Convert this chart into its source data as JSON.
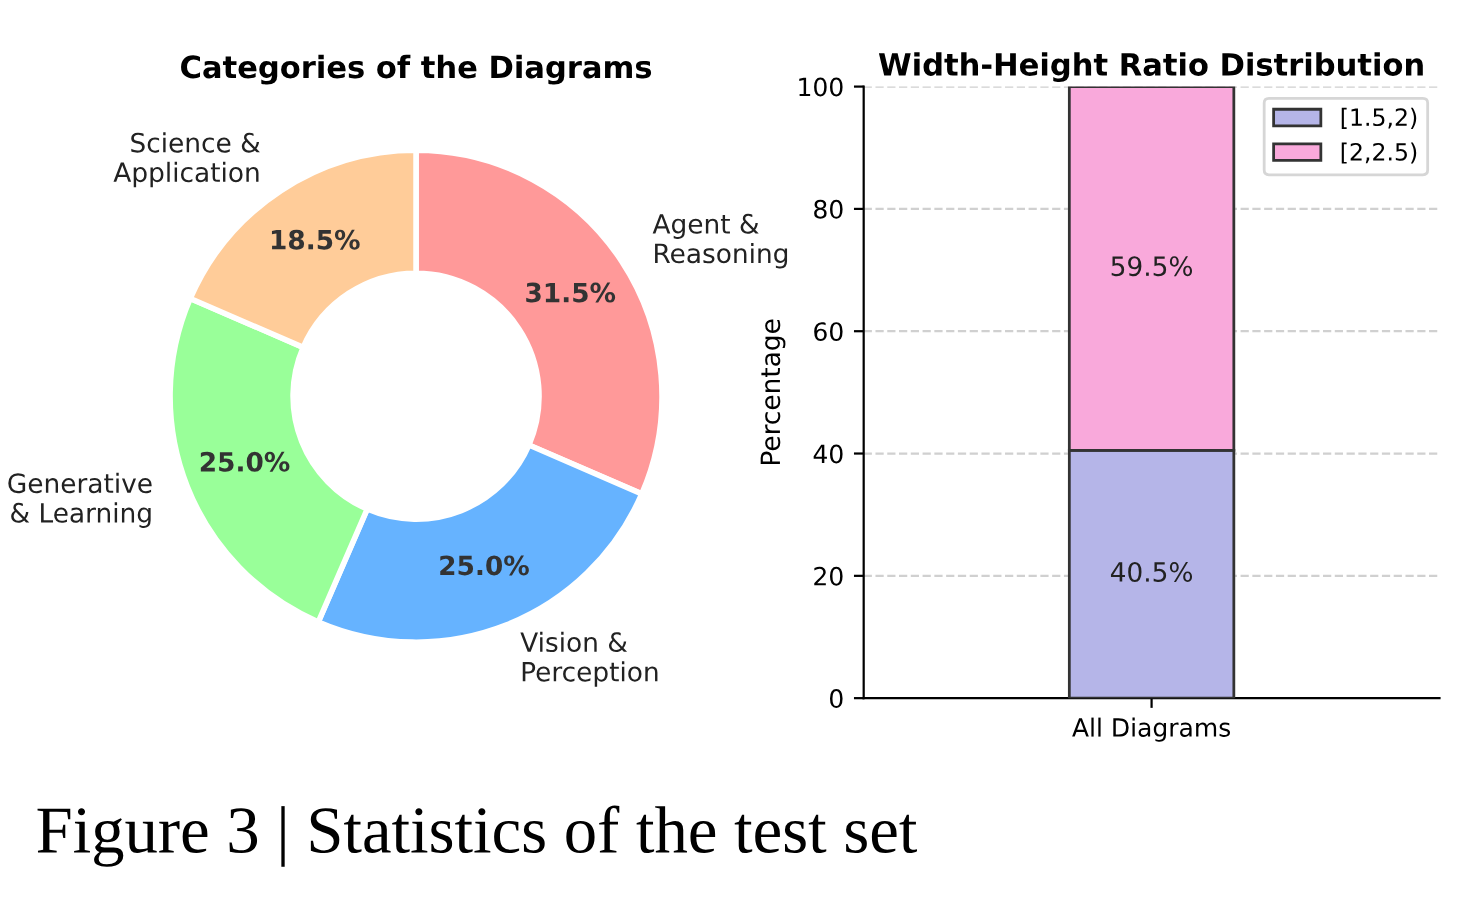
{
  "chart_data": [
    {
      "type": "donut",
      "title": "Categories of the Diagrams",
      "categories": [
        "Agent &\nReasoning",
        "Vision &\nPerception",
        "Generative\n& Learning",
        "Science &\nApplication"
      ],
      "values": [
        31.5,
        25.0,
        25.0,
        18.5
      ],
      "colors": [
        "#ff9999",
        "#66b3ff",
        "#99ff99",
        "#ffcc99"
      ],
      "value_labels": [
        "31.5%",
        "25.0%",
        "25.0%",
        "18.5%"
      ],
      "annotations": [
        "Figure 3 | Statistics of the test set"
      ]
    },
    {
      "type": "bar",
      "title": "Width-Height Ratio Distribution",
      "ylabel": "Percentage",
      "categories": [
        "All Diagrams"
      ],
      "stacked": true,
      "series": [
        {
          "name": "[1.5,2)",
          "color": "#b5b5e8",
          "values": [
            40.5
          ],
          "value_labels": [
            "40.5%"
          ]
        },
        {
          "name": "[2,2.5)",
          "color": "#f9a9db",
          "values": [
            59.5
          ],
          "value_labels": [
            "59.5%"
          ]
        }
      ],
      "ylim": [
        0,
        100
      ],
      "yticks": [
        0,
        20,
        40,
        60,
        80,
        100
      ],
      "grid": "y",
      "legend": "top right"
    }
  ]
}
